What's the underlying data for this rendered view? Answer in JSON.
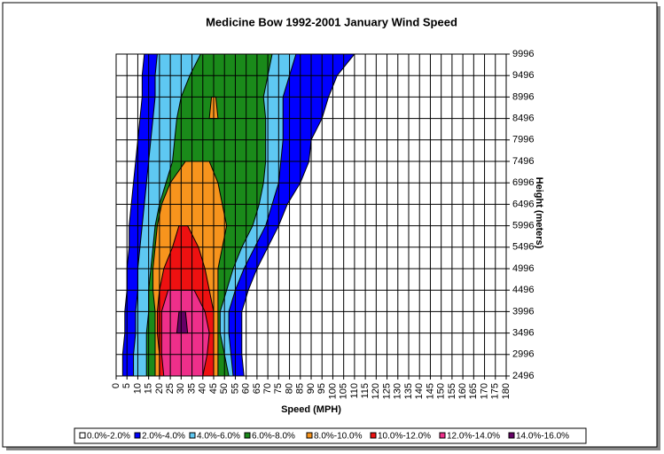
{
  "chart_data": {
    "type": "contour",
    "title": "Medicine Bow 1992-2001 January Wind Speed",
    "x_label": "Speed (MPH)",
    "y_label": "Height (meters)",
    "xlim": [
      0,
      180
    ],
    "xticks": [
      0,
      5,
      10,
      15,
      20,
      25,
      30,
      35,
      40,
      45,
      50,
      55,
      60,
      65,
      70,
      75,
      80,
      85,
      90,
      95,
      100,
      105,
      110,
      115,
      120,
      125,
      130,
      135,
      140,
      145,
      150,
      155,
      160,
      165,
      170,
      175,
      180
    ],
    "ylim": [
      2496,
      9996
    ],
    "yticks": [
      2496,
      2996,
      3496,
      3996,
      4496,
      4996,
      5496,
      5996,
      6496,
      6996,
      7496,
      7996,
      8496,
      8996,
      9496,
      9996
    ],
    "y": [
      2496,
      2996,
      3496,
      3996,
      4496,
      4996,
      5496,
      5996,
      6496,
      6996,
      7496,
      7996,
      8496,
      8996,
      9496,
      9996
    ],
    "grid": true,
    "legend": "bottom",
    "series": [
      {
        "name": "0.0%-2.0%",
        "color": "#ffffff"
      },
      {
        "name": "2.0%-4.0%",
        "color": "#0000ff",
        "left": [
          3,
          3,
          4,
          4,
          5,
          5,
          6,
          6,
          7,
          8,
          9,
          10,
          11,
          12,
          12,
          13
        ],
        "right": [
          59,
          58,
          58,
          58,
          61,
          65,
          70,
          75,
          79,
          85,
          89,
          90,
          95,
          98,
          102,
          110
        ]
      },
      {
        "name": "4.0%-6.0%",
        "color": "#5ec8f2",
        "left": [
          8,
          8,
          9,
          9,
          10,
          10,
          11,
          12,
          13,
          14,
          15,
          16,
          17,
          18,
          18,
          19
        ],
        "right": [
          54,
          53,
          52,
          52,
          55,
          59,
          64,
          69,
          72,
          75,
          76,
          77,
          77,
          77,
          80,
          83
        ]
      },
      {
        "name": "6.0%-8.0%",
        "color": "#1a8a1a",
        "left": [
          14,
          14,
          14,
          15,
          15,
          16,
          17,
          18,
          20,
          23,
          26,
          27,
          28,
          30,
          34,
          39
        ],
        "right": [
          52,
          50,
          48,
          48,
          51,
          54,
          58,
          63,
          66,
          68,
          69,
          69,
          69,
          68,
          70,
          72
        ]
      },
      {
        "name": "8.0%-10.0%",
        "color": "#f7941d",
        "left": [
          18,
          18,
          18,
          18,
          17,
          17,
          18,
          19,
          21,
          25,
          32,
          null,
          43,
          44,
          null,
          null
        ],
        "right": [
          47,
          47,
          47,
          47,
          47,
          47,
          49,
          51,
          49,
          47,
          43,
          null,
          47,
          46,
          null,
          null
        ]
      },
      {
        "name": "10.0%-12.0%",
        "color": "#ee1111",
        "left": [
          20,
          20,
          19,
          19,
          20,
          22,
          26,
          29,
          null,
          null,
          null,
          null,
          null,
          null,
          null,
          null
        ],
        "right": [
          45,
          45,
          45,
          45,
          43,
          41,
          38,
          33,
          null,
          null,
          null,
          null,
          null,
          null,
          null,
          null
        ]
      },
      {
        "name": "12.0%-14.0%",
        "color": "#ee2f8a",
        "left": [
          22,
          21,
          21,
          21,
          24,
          null,
          null,
          null,
          null,
          null,
          null,
          null,
          null,
          null,
          null,
          null
        ],
        "right": [
          40,
          42,
          43,
          41,
          36,
          null,
          null,
          null,
          null,
          null,
          null,
          null,
          null,
          null,
          null,
          null
        ]
      },
      {
        "name": "14.0%-16.0%",
        "color": "#660066",
        "left": [
          null,
          null,
          28,
          29,
          null,
          null,
          null,
          null,
          null,
          null,
          null,
          null,
          null,
          null,
          null,
          null
        ],
        "right": [
          null,
          null,
          33,
          32,
          null,
          null,
          null,
          null,
          null,
          null,
          null,
          null,
          null,
          null,
          null,
          null
        ]
      }
    ]
  }
}
